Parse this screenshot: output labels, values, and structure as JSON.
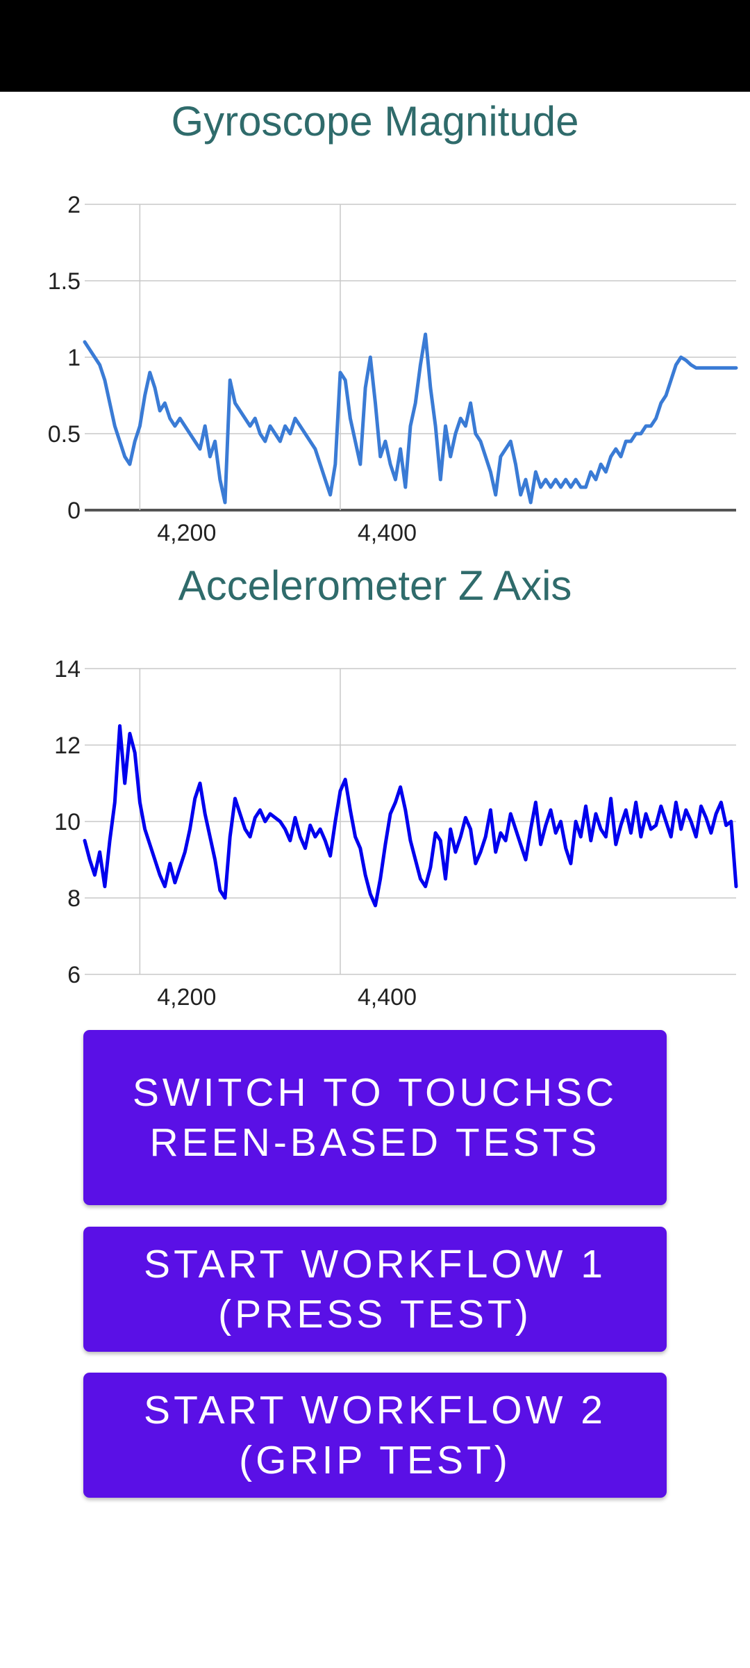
{
  "colors": {
    "status_bar": "#000000",
    "title": "#2f6b6b",
    "gyro_line": "#3a7bd5",
    "accel_line": "#0000ee",
    "button_bg": "#5a10e6",
    "button_text": "#ffffff"
  },
  "buttons": {
    "switch": "SWITCH TO TOUCHSCREEN-BASED TESTS",
    "workflow1": "START WORKFLOW 1 (PRESS TEST)",
    "workflow2": "START WORKFLOW 2 (GRIP TEST)"
  },
  "chart_data": [
    {
      "type": "line",
      "title": "Gyroscope Magnitude",
      "xlim": [
        4145,
        4795
      ],
      "ylim": [
        0,
        2
      ],
      "xticks": [
        4200,
        4400
      ],
      "xtick_labels": [
        "4,200",
        "4,400"
      ],
      "yticks": [
        0,
        0.5,
        1,
        1.5,
        2
      ],
      "ytick_labels": [
        "0",
        "0.5",
        "1",
        "1.5",
        "2"
      ],
      "grid": true,
      "legend": "none",
      "series": [
        {
          "color": "#3a7bd5",
          "x": [
            4145,
            4150,
            4155,
            4160,
            4165,
            4170,
            4175,
            4180,
            4185,
            4190,
            4195,
            4200,
            4205,
            4210,
            4215,
            4220,
            4225,
            4230,
            4235,
            4240,
            4245,
            4250,
            4255,
            4260,
            4265,
            4270,
            4275,
            4280,
            4285,
            4290,
            4295,
            4300,
            4305,
            4310,
            4315,
            4320,
            4325,
            4330,
            4335,
            4340,
            4345,
            4350,
            4355,
            4360,
            4365,
            4370,
            4375,
            4380,
            4385,
            4390,
            4395,
            4400,
            4405,
            4410,
            4415,
            4420,
            4425,
            4430,
            4435,
            4440,
            4445,
            4450,
            4455,
            4460,
            4465,
            4470,
            4475,
            4480,
            4485,
            4490,
            4495,
            4500,
            4505,
            4510,
            4515,
            4520,
            4525,
            4530,
            4535,
            4540,
            4545,
            4550,
            4555,
            4560,
            4565,
            4570,
            4575,
            4580,
            4585,
            4590,
            4595,
            4600,
            4605,
            4610,
            4615,
            4620,
            4625,
            4630,
            4635,
            4640,
            4645,
            4650,
            4655,
            4660,
            4665,
            4670,
            4675,
            4680,
            4685,
            4690,
            4695,
            4700,
            4705,
            4710,
            4715,
            4720,
            4725,
            4730,
            4735,
            4740,
            4745,
            4750,
            4755,
            4760,
            4765,
            4770,
            4775,
            4780,
            4785,
            4790,
            4795
          ],
          "y": [
            1.1,
            1.05,
            1.0,
            0.95,
            0.85,
            0.7,
            0.55,
            0.45,
            0.35,
            0.3,
            0.45,
            0.55,
            0.75,
            0.9,
            0.8,
            0.65,
            0.7,
            0.6,
            0.55,
            0.6,
            0.55,
            0.5,
            0.45,
            0.4,
            0.55,
            0.35,
            0.45,
            0.2,
            0.05,
            0.85,
            0.7,
            0.65,
            0.6,
            0.55,
            0.6,
            0.5,
            0.45,
            0.55,
            0.5,
            0.45,
            0.55,
            0.5,
            0.6,
            0.55,
            0.5,
            0.45,
            0.4,
            0.3,
            0.2,
            0.1,
            0.3,
            0.9,
            0.85,
            0.6,
            0.45,
            0.3,
            0.8,
            1.0,
            0.7,
            0.35,
            0.45,
            0.3,
            0.2,
            0.4,
            0.15,
            0.55,
            0.7,
            0.95,
            1.15,
            0.8,
            0.55,
            0.2,
            0.55,
            0.35,
            0.5,
            0.6,
            0.55,
            0.7,
            0.5,
            0.45,
            0.35,
            0.25,
            0.1,
            0.35,
            0.4,
            0.45,
            0.3,
            0.1,
            0.2,
            0.05,
            0.25,
            0.15,
            0.2,
            0.15,
            0.2,
            0.15,
            0.2,
            0.15,
            0.2,
            0.15,
            0.15,
            0.25,
            0.2,
            0.3,
            0.25,
            0.35,
            0.4,
            0.35,
            0.45,
            0.45,
            0.5,
            0.5,
            0.55,
            0.55,
            0.6,
            0.7,
            0.75,
            0.85,
            0.95,
            1.0,
            0.98,
            0.95,
            0.93,
            0.93,
            0.93,
            0.93,
            0.93,
            0.93,
            0.93,
            0.93,
            0.93
          ]
        }
      ]
    },
    {
      "type": "line",
      "title": "Accelerometer Z Axis",
      "xlim": [
        4145,
        4795
      ],
      "ylim": [
        6,
        14
      ],
      "xticks": [
        4200,
        4400
      ],
      "xtick_labels": [
        "4,200",
        "4,400"
      ],
      "yticks": [
        6,
        8,
        10,
        12,
        14
      ],
      "ytick_labels": [
        "6",
        "8",
        "10",
        "12",
        "14"
      ],
      "grid": true,
      "legend": "none",
      "series": [
        {
          "color": "#0000ee",
          "x": [
            4145,
            4150,
            4155,
            4160,
            4165,
            4170,
            4175,
            4180,
            4185,
            4190,
            4195,
            4200,
            4205,
            4210,
            4215,
            4220,
            4225,
            4230,
            4235,
            4240,
            4245,
            4250,
            4255,
            4260,
            4265,
            4270,
            4275,
            4280,
            4285,
            4290,
            4295,
            4300,
            4305,
            4310,
            4315,
            4320,
            4325,
            4330,
            4335,
            4340,
            4345,
            4350,
            4355,
            4360,
            4365,
            4370,
            4375,
            4380,
            4385,
            4390,
            4395,
            4400,
            4405,
            4410,
            4415,
            4420,
            4425,
            4430,
            4435,
            4440,
            4445,
            4450,
            4455,
            4460,
            4465,
            4470,
            4475,
            4480,
            4485,
            4490,
            4495,
            4500,
            4505,
            4510,
            4515,
            4520,
            4525,
            4530,
            4535,
            4540,
            4545,
            4550,
            4555,
            4560,
            4565,
            4570,
            4575,
            4580,
            4585,
            4590,
            4595,
            4600,
            4605,
            4610,
            4615,
            4620,
            4625,
            4630,
            4635,
            4640,
            4645,
            4650,
            4655,
            4660,
            4665,
            4670,
            4675,
            4680,
            4685,
            4690,
            4695,
            4700,
            4705,
            4710,
            4715,
            4720,
            4725,
            4730,
            4735,
            4740,
            4745,
            4750,
            4755,
            4760,
            4765,
            4770,
            4775,
            4780,
            4785,
            4790,
            4795
          ],
          "y": [
            9.5,
            9.0,
            8.6,
            9.2,
            8.3,
            9.5,
            10.5,
            12.5,
            11.0,
            12.3,
            11.8,
            10.5,
            9.8,
            9.4,
            9.0,
            8.6,
            8.3,
            8.9,
            8.4,
            8.8,
            9.2,
            9.8,
            10.6,
            11.0,
            10.2,
            9.6,
            9.0,
            8.2,
            8.0,
            9.6,
            10.6,
            10.2,
            9.8,
            9.6,
            10.1,
            10.3,
            10.0,
            10.2,
            10.1,
            10.0,
            9.8,
            9.5,
            10.1,
            9.6,
            9.3,
            9.9,
            9.6,
            9.8,
            9.5,
            9.1,
            10.0,
            10.8,
            11.1,
            10.3,
            9.6,
            9.3,
            8.6,
            8.1,
            7.8,
            8.5,
            9.4,
            10.2,
            10.5,
            10.9,
            10.3,
            9.5,
            9.0,
            8.5,
            8.3,
            8.8,
            9.7,
            9.5,
            8.5,
            9.8,
            9.2,
            9.6,
            10.1,
            9.8,
            8.9,
            9.2,
            9.6,
            10.3,
            9.2,
            9.7,
            9.5,
            10.2,
            9.8,
            9.4,
            9.0,
            9.8,
            10.5,
            9.4,
            9.9,
            10.3,
            9.7,
            10.0,
            9.3,
            8.9,
            10.0,
            9.6,
            10.4,
            9.5,
            10.2,
            9.8,
            9.6,
            10.6,
            9.4,
            9.9,
            10.3,
            9.7,
            10.5,
            9.6,
            10.2,
            9.8,
            9.9,
            10.4,
            10.0,
            9.6,
            10.5,
            9.8,
            10.3,
            10.0,
            9.6,
            10.4,
            10.1,
            9.7,
            10.2,
            10.5,
            9.9,
            10.0,
            8.3
          ]
        }
      ]
    }
  ]
}
